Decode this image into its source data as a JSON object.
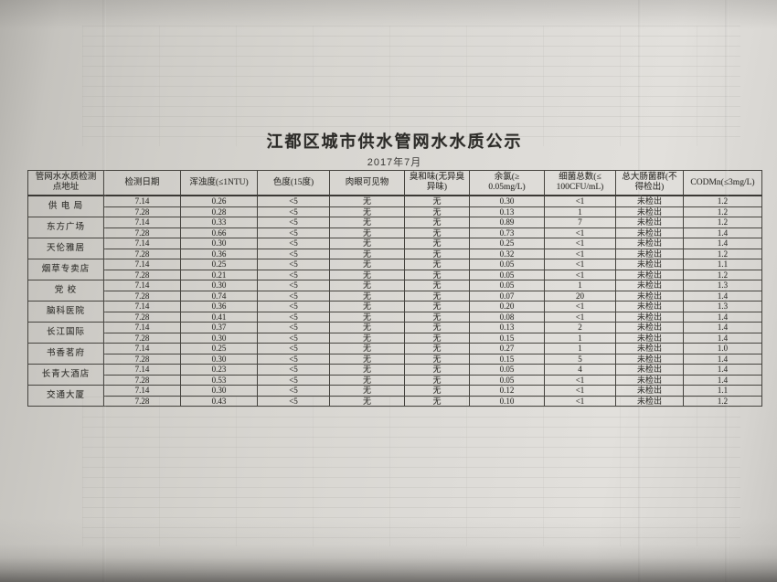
{
  "photo": {
    "paper_color": "#dcdad6",
    "shadow_color": "#3c3a38",
    "ink_color": "#34332f"
  },
  "notice": {
    "title": "江都区城市供水管网水水质公示",
    "subtitle": "2017年7月",
    "table": {
      "headers": [
        "管网水水质检测\n点地址",
        "检测日期",
        "浑浊度(≤1NTU)",
        "色度(15度)",
        "肉眼可见物",
        "臭和味(无异臭\n异味)",
        "余氯(≥\n0.05mg/L)",
        "细菌总数(≤\n100CFU/mL)",
        "总大肠菌群(不\n得检出)",
        "CODMn(≤3mg/L)"
      ],
      "locations": [
        {
          "name": "供 电 局",
          "rows": [
            [
              "7.14",
              "0.26",
              "<5",
              "无",
              "无",
              "0.30",
              "<1",
              "未检出",
              "1.2"
            ],
            [
              "7.28",
              "0.28",
              "<5",
              "无",
              "无",
              "0.13",
              "1",
              "未检出",
              "1.2"
            ]
          ]
        },
        {
          "name": "东方广场",
          "rows": [
            [
              "7.14",
              "0.33",
              "<5",
              "无",
              "无",
              "0.89",
              "7",
              "未检出",
              "1.2"
            ],
            [
              "7.28",
              "0.66",
              "<5",
              "无",
              "无",
              "0.73",
              "<1",
              "未检出",
              "1.4"
            ]
          ]
        },
        {
          "name": "天伦雅居",
          "rows": [
            [
              "7.14",
              "0.30",
              "<5",
              "无",
              "无",
              "0.25",
              "<1",
              "未检出",
              "1.4"
            ],
            [
              "7.28",
              "0.36",
              "<5",
              "无",
              "无",
              "0.32",
              "<1",
              "未检出",
              "1.2"
            ]
          ]
        },
        {
          "name": "烟草专卖店",
          "rows": [
            [
              "7.14",
              "0.25",
              "<5",
              "无",
              "无",
              "0.05",
              "<1",
              "未检出",
              "1.1"
            ],
            [
              "7.28",
              "0.21",
              "<5",
              "无",
              "无",
              "0.05",
              "<1",
              "未检出",
              "1.2"
            ]
          ]
        },
        {
          "name": "党  校",
          "rows": [
            [
              "7.14",
              "0.30",
              "<5",
              "无",
              "无",
              "0.05",
              "1",
              "未检出",
              "1.3"
            ],
            [
              "7.28",
              "0.74",
              "<5",
              "无",
              "无",
              "0.07",
              "20",
              "未检出",
              "1.4"
            ]
          ]
        },
        {
          "name": "脑科医院",
          "rows": [
            [
              "7.14",
              "0.36",
              "<5",
              "无",
              "无",
              "0.20",
              "<1",
              "未检出",
              "1.3"
            ],
            [
              "7.28",
              "0.41",
              "<5",
              "无",
              "无",
              "0.08",
              "<1",
              "未检出",
              "1.4"
            ]
          ]
        },
        {
          "name": "长江国际",
          "rows": [
            [
              "7.14",
              "0.37",
              "<5",
              "无",
              "无",
              "0.13",
              "2",
              "未检出",
              "1.4"
            ],
            [
              "7.28",
              "0.30",
              "<5",
              "无",
              "无",
              "0.15",
              "1",
              "未检出",
              "1.4"
            ]
          ]
        },
        {
          "name": "书香茗府",
          "rows": [
            [
              "7.14",
              "0.25",
              "<5",
              "无",
              "无",
              "0.27",
              "1",
              "未检出",
              "1.0"
            ],
            [
              "7.28",
              "0.30",
              "<5",
              "无",
              "无",
              "0.15",
              "5",
              "未检出",
              "1.4"
            ]
          ]
        },
        {
          "name": "长青大酒店",
          "rows": [
            [
              "7.14",
              "0.23",
              "<5",
              "无",
              "无",
              "0.05",
              "4",
              "未检出",
              "1.4"
            ],
            [
              "7.28",
              "0.53",
              "<5",
              "无",
              "无",
              "0.05",
              "<1",
              "未检出",
              "1.4"
            ]
          ]
        },
        {
          "name": "交通大厦",
          "rows": [
            [
              "7.14",
              "0.30",
              "<5",
              "无",
              "无",
              "0.12",
              "<1",
              "未检出",
              "1.1"
            ],
            [
              "7.28",
              "0.43",
              "<5",
              "无",
              "无",
              "0.10",
              "<1",
              "未检出",
              "1.2"
            ]
          ]
        }
      ]
    }
  }
}
